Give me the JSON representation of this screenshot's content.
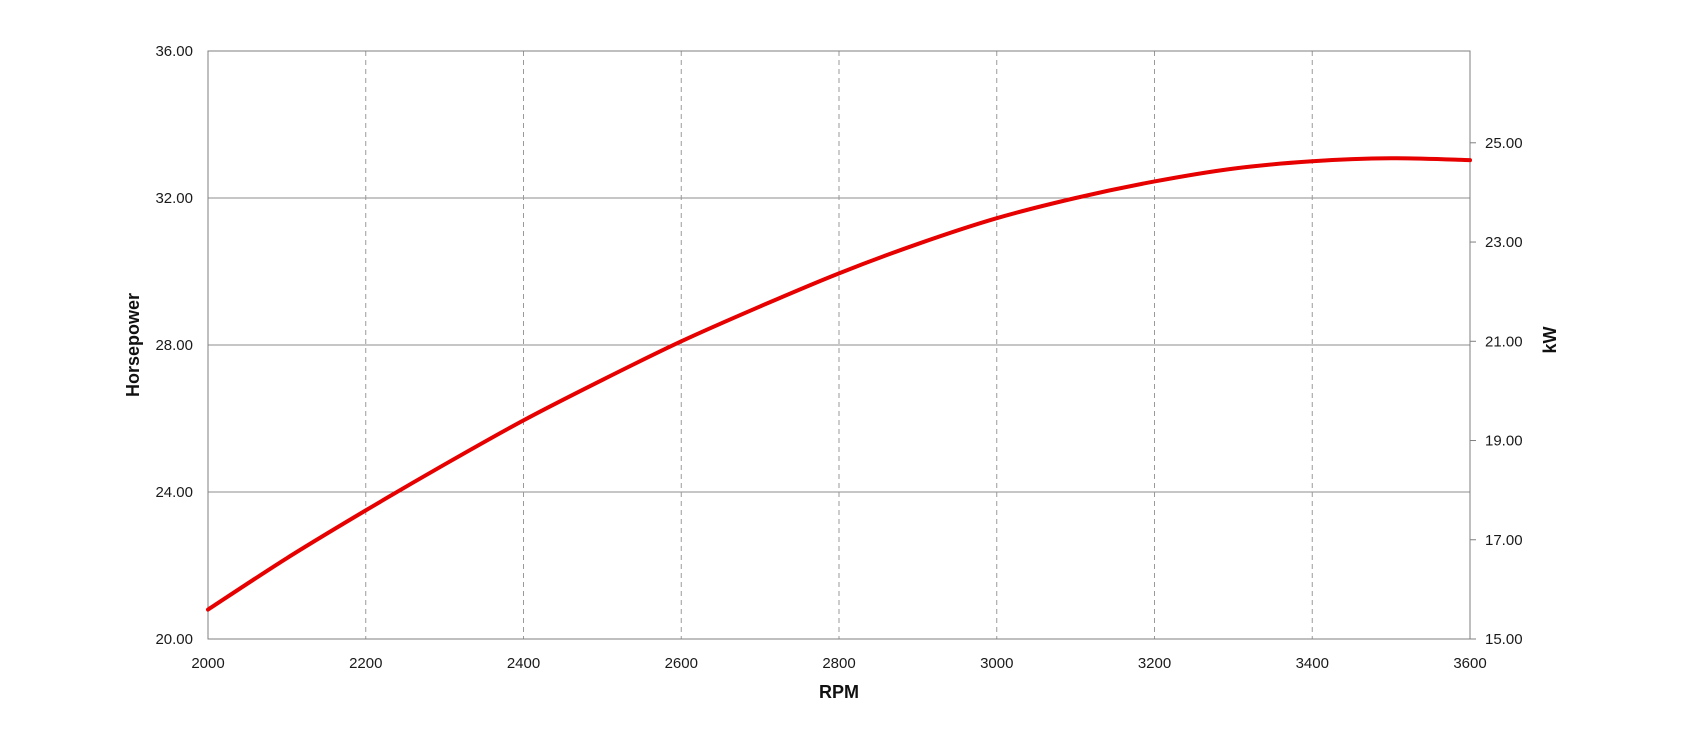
{
  "chart_data": {
    "type": "line",
    "title": "",
    "xlabel": "RPM",
    "ylabel": "Horsepower",
    "y2label": "kW",
    "xlim": [
      2000,
      3600
    ],
    "ylim": [
      20,
      36
    ],
    "y2lim": [
      15,
      26.85
    ],
    "x_ticks": [
      "2000",
      "2200",
      "2400",
      "2600",
      "2800",
      "3000",
      "3200",
      "3400",
      "3600"
    ],
    "y_ticks": [
      "20.00",
      "24.00",
      "28.00",
      "32.00",
      "36.00"
    ],
    "y2_ticks": [
      "15.00",
      "17.00",
      "19.00",
      "21.00",
      "23.00",
      "25.00"
    ],
    "grid": {
      "horizontal": "solid",
      "vertical": "dashed"
    },
    "legend": "none",
    "series": [
      {
        "color": "#e60000",
        "x": [
          2000,
          2100,
          2200,
          2300,
          2400,
          2500,
          2600,
          2700,
          2800,
          2900,
          3000,
          3100,
          3200,
          3300,
          3400,
          3500,
          3600
        ],
        "y": [
          20.8,
          22.2,
          23.5,
          24.75,
          25.95,
          27.05,
          28.1,
          29.05,
          29.95,
          30.75,
          31.45,
          32.0,
          32.45,
          32.8,
          33.0,
          33.08,
          33.03
        ]
      }
    ]
  }
}
